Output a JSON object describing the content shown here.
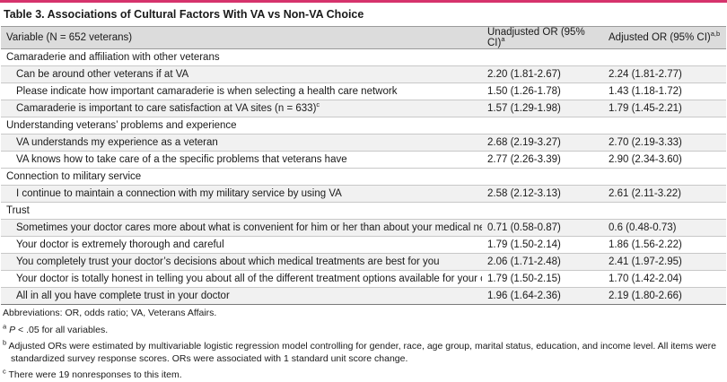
{
  "title": "Table 3. Associations of Cultural Factors With VA vs Non-VA Choice",
  "header": {
    "variable": "Variable (N = 652 veterans)",
    "unadjusted": "Unadjusted OR (95% CI)",
    "unadjusted_sup": "a",
    "adjusted": "Adjusted OR (95% CI)",
    "adjusted_sup": "a,b"
  },
  "sections": [
    {
      "category": "Camaraderie and affiliation with other veterans",
      "rows": [
        {
          "label": "Can be around other veterans if at VA",
          "unadj": "2.20 (1.81-2.67)",
          "adj": "2.24 (1.81-2.77)"
        },
        {
          "label": "Please indicate how important camaraderie is when selecting a health care network",
          "unadj": "1.50 (1.26-1.78)",
          "adj": "1.43 (1.18-1.72)"
        },
        {
          "label": "Camaraderie is important to care satisfaction at VA sites (n = 633)",
          "sup": "c",
          "unadj": "1.57 (1.29-1.98)",
          "adj": "1.79 (1.45-2.21)"
        }
      ]
    },
    {
      "category": "Understanding veterans’ problems and experience",
      "rows": [
        {
          "label": "VA understands my experience as a veteran",
          "unadj": "2.68 (2.19-3.27)",
          "adj": "2.70 (2.19-3.33)"
        },
        {
          "label": "VA knows how to take care of a the specific problems that veterans have",
          "unadj": "2.77 (2.26-3.39)",
          "adj": "2.90 (2.34-3.60)"
        }
      ]
    },
    {
      "category": "Connection to military service",
      "rows": [
        {
          "label": "I continue to maintain a connection with my military service by using VA",
          "unadj": "2.58 (2.12-3.13)",
          "adj": "2.61 (2.11-3.22)"
        }
      ]
    },
    {
      "category": "Trust",
      "rows": [
        {
          "label": "Sometimes your doctor cares more about what is convenient for him or her than about your medical needs",
          "unadj": "0.71 (0.58-0.87)",
          "adj": "0.6 (0.48-0.73)"
        },
        {
          "label": "Your doctor is extremely thorough and careful",
          "unadj": "1.79 (1.50-2.14)",
          "adj": "1.86 (1.56-2.22)"
        },
        {
          "label": "You completely trust your doctor’s decisions about which medical treatments are best for you",
          "unadj": "2.06 (1.71-2.48)",
          "adj": "2.41 (1.97-2.95)"
        },
        {
          "label": "Your doctor is totally honest in telling you about all of the different treatment options available for your condition",
          "unadj": "1.79 (1.50-2.15)",
          "adj": "1.70 (1.42-2.04)"
        },
        {
          "label": "All in all you have complete trust in your doctor",
          "unadj": "1.96 (1.64-2.36)",
          "adj": "2.19 (1.80-2.66)"
        }
      ]
    }
  ],
  "notes": {
    "abbreviations": "Abbreviations: OR, odds ratio; VA, Veterans Affairs.",
    "a_mark": "a",
    "a_p": "P",
    "a_text": " < .05 for all variables.",
    "b_mark": "b",
    "b_text": "Adjusted ORs were estimated by multivariable logistic regression model controlling for gender, race, age group, marital status, education, and income level. All items were standardized survey response scores. ORs were associated with 1 standard unit score change.",
    "c_mark": "c",
    "c_text": "There were 19 nonresponses to this item."
  },
  "colors": {
    "accent_rule": "#d6336c",
    "header_bg": "#dcdcdc",
    "shade_bg": "#f1f1f1"
  }
}
